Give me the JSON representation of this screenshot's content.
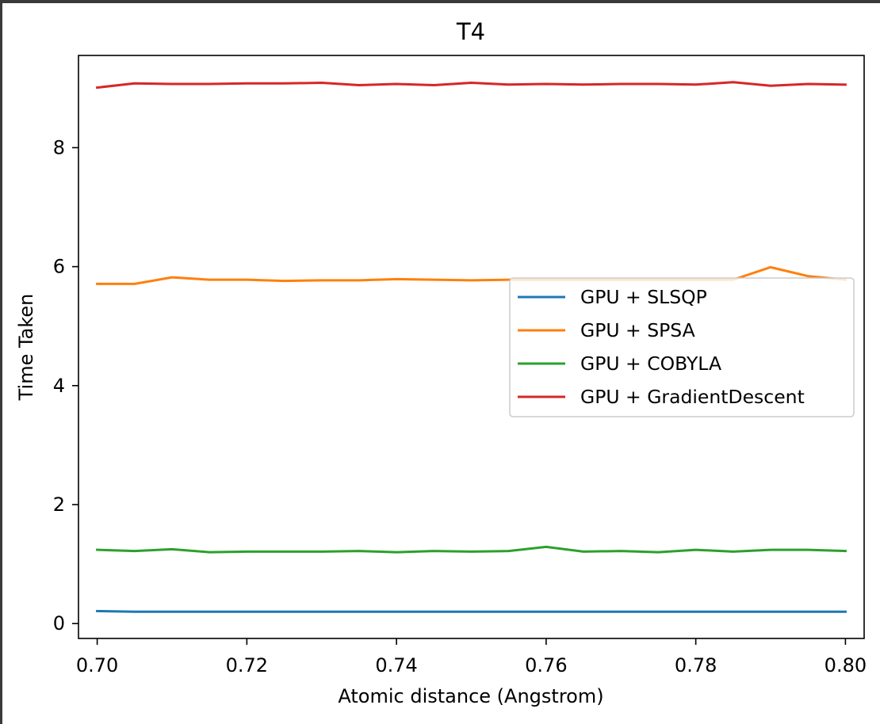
{
  "chart_data": {
    "type": "line",
    "title": "T4",
    "xlabel": "Atomic distance (Angstrom)",
    "ylabel": "Time Taken",
    "xlim": [
      0.6975,
      0.8025
    ],
    "ylim": [
      -0.25,
      9.55
    ],
    "xticks": [
      0.7,
      0.72,
      0.74,
      0.76,
      0.78,
      0.8
    ],
    "xtick_labels": [
      "0.70",
      "0.72",
      "0.74",
      "0.76",
      "0.78",
      "0.80"
    ],
    "yticks": [
      0,
      2,
      4,
      6,
      8
    ],
    "ytick_labels": [
      "0",
      "2",
      "4",
      "6",
      "8"
    ],
    "grid": false,
    "legend_position": "center-right",
    "x": [
      0.7,
      0.705,
      0.71,
      0.715,
      0.72,
      0.725,
      0.73,
      0.735,
      0.74,
      0.745,
      0.75,
      0.755,
      0.76,
      0.765,
      0.77,
      0.775,
      0.78,
      0.785,
      0.79,
      0.795,
      0.8
    ],
    "series": [
      {
        "name": "GPU + SLSQP",
        "color": "#1f77b4",
        "values": [
          0.21,
          0.2,
          0.2,
          0.2,
          0.2,
          0.2,
          0.2,
          0.2,
          0.2,
          0.2,
          0.2,
          0.2,
          0.2,
          0.2,
          0.2,
          0.2,
          0.2,
          0.2,
          0.2,
          0.2,
          0.2
        ]
      },
      {
        "name": "GPU + SPSA",
        "color": "#ff7f0e",
        "values": [
          5.71,
          5.71,
          5.82,
          5.78,
          5.78,
          5.76,
          5.77,
          5.77,
          5.79,
          5.78,
          5.77,
          5.78,
          5.78,
          5.78,
          5.78,
          5.78,
          5.78,
          5.78,
          5.99,
          5.84,
          5.78
        ]
      },
      {
        "name": "GPU + COBYLA",
        "color": "#2ca02c",
        "values": [
          1.24,
          1.22,
          1.25,
          1.2,
          1.21,
          1.21,
          1.21,
          1.22,
          1.2,
          1.22,
          1.21,
          1.22,
          1.29,
          1.21,
          1.22,
          1.2,
          1.24,
          1.21,
          1.24,
          1.24,
          1.22
        ]
      },
      {
        "name": "GPU + GradientDescent",
        "color": "#d62728",
        "values": [
          9.01,
          9.08,
          9.07,
          9.07,
          9.08,
          9.08,
          9.09,
          9.05,
          9.07,
          9.05,
          9.09,
          9.06,
          9.07,
          9.06,
          9.07,
          9.07,
          9.06,
          9.1,
          9.04,
          9.07,
          9.06
        ]
      }
    ]
  }
}
